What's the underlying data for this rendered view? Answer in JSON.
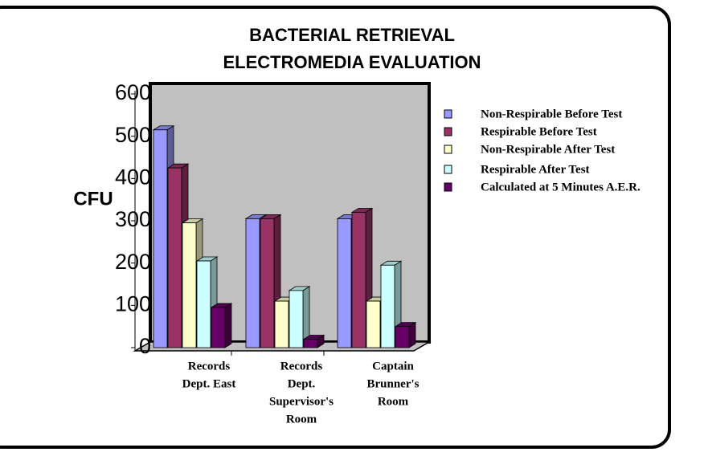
{
  "chart_data": {
    "type": "bar3d",
    "title": [
      "BACTERIAL RETRIEVAL",
      "ELECTROMEDIA EVALUATION"
    ],
    "y_label": "CFU",
    "categories": [
      [
        "Records",
        "Dept. East"
      ],
      [
        "Records",
        "Dept.",
        "Supervisor's",
        "Room"
      ],
      [
        "Captain",
        "Brunner's",
        "Room"
      ]
    ],
    "series": [
      {
        "name": "Non-Respirable Before Test",
        "color": "#9999ff",
        "values": [
          515,
          305,
          305
        ]
      },
      {
        "name": "Respirable Before Test",
        "color": "#993366",
        "values": [
          425,
          305,
          320
        ]
      },
      {
        "name": "Non-Respirable After Test",
        "color": "#ffffcc",
        "values": [
          295,
          110,
          110
        ]
      },
      {
        "name": "Respirable After Test",
        "color": "#ccffff",
        "values": [
          205,
          135,
          195
        ]
      },
      {
        "name": "Calculated at 5 Minutes A.E.R.",
        "color": "#660066",
        "values": [
          95,
          20,
          50
        ]
      }
    ],
    "ylim": [
      0,
      600
    ],
    "yticks": [
      0,
      100,
      200,
      300,
      400,
      500,
      600
    ],
    "legend": "right"
  }
}
